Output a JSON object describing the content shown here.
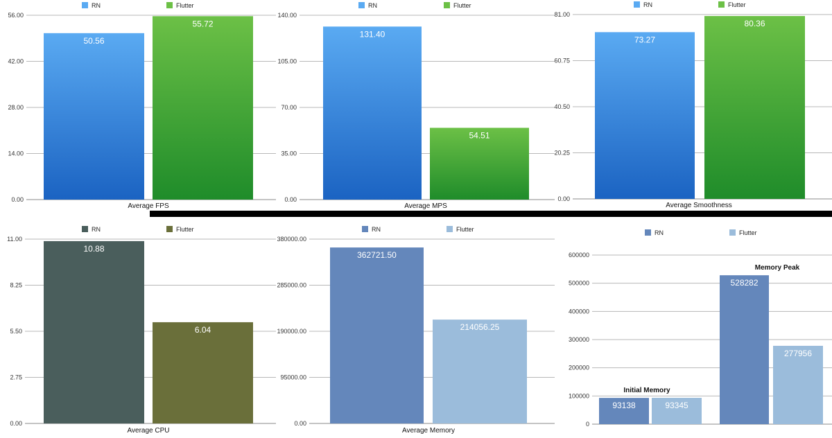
{
  "colors": {
    "rn_blue_top": "#5aaaf2",
    "rn_blue_bottom": "#1b63c2",
    "flutter_green_top": "#6cc046",
    "flutter_green_bottom": "#1f8c2a",
    "rn_slate": "#4a5e5c",
    "flutter_olive": "#6a6f3a",
    "rn_steel": "#6487bb",
    "flutter_light": "#9bbcdb",
    "gridline": "#b7b7b7",
    "label_white": "#ffffff"
  },
  "chart_data": [
    {
      "type": "bar",
      "xlabel": "Average FPS",
      "ylim": [
        0,
        56
      ],
      "yticks": [
        "0.00",
        "14.00",
        "28.00",
        "42.00",
        "56.00"
      ],
      "legend": [
        "RN",
        "Flutter"
      ],
      "series": [
        {
          "name": "RN",
          "values": [
            50.56
          ],
          "labels": [
            "50.56"
          ],
          "style": "blue"
        },
        {
          "name": "Flutter",
          "values": [
            55.72
          ],
          "labels": [
            "55.72"
          ],
          "style": "green"
        }
      ]
    },
    {
      "type": "bar",
      "xlabel": "Average MPS",
      "ylim": [
        0,
        140
      ],
      "yticks": [
        "0.00",
        "35.00",
        "70.00",
        "105.00",
        "140.00"
      ],
      "legend": [
        "RN",
        "Flutter"
      ],
      "series": [
        {
          "name": "RN",
          "values": [
            131.4
          ],
          "labels": [
            "131.40"
          ],
          "style": "blue"
        },
        {
          "name": "Flutter",
          "values": [
            54.51
          ],
          "labels": [
            "54.51"
          ],
          "style": "green"
        }
      ]
    },
    {
      "type": "bar",
      "xlabel": "Average Smoothness",
      "ylim": [
        0,
        81
      ],
      "yticks": [
        "0.00",
        "20.25",
        "40.50",
        "60.75",
        "81.00"
      ],
      "legend": [
        "RN",
        "Flutter"
      ],
      "series": [
        {
          "name": "RN",
          "values": [
            73.27
          ],
          "labels": [
            "73.27"
          ],
          "style": "blue"
        },
        {
          "name": "Flutter",
          "values": [
            80.36
          ],
          "labels": [
            "80.36"
          ],
          "style": "green"
        }
      ]
    },
    {
      "type": "bar",
      "xlabel": "Average CPU",
      "ylim": [
        0,
        11
      ],
      "yticks": [
        "0.00",
        "2.75",
        "5.50",
        "8.25",
        "11.00"
      ],
      "legend": [
        "RN",
        "Flutter"
      ],
      "series": [
        {
          "name": "RN",
          "values": [
            10.88
          ],
          "labels": [
            "10.88"
          ],
          "style": "slate"
        },
        {
          "name": "Flutter",
          "values": [
            6.04
          ],
          "labels": [
            "6.04"
          ],
          "style": "olive"
        }
      ]
    },
    {
      "type": "bar",
      "xlabel": "Average Memory",
      "ylim": [
        0,
        380000
      ],
      "yticks": [
        "0.00",
        "95000.00",
        "190000.00",
        "285000.00",
        "380000.00"
      ],
      "legend": [
        "RN",
        "Flutter"
      ],
      "series": [
        {
          "name": "RN",
          "values": [
            362721.5
          ],
          "labels": [
            "362721.50"
          ],
          "style": "steel"
        },
        {
          "name": "Flutter",
          "values": [
            214056.25
          ],
          "labels": [
            "214056.25"
          ],
          "style": "light"
        }
      ]
    },
    {
      "type": "bar",
      "categories": [
        "Initial Memory",
        "Memory Peak"
      ],
      "ylim": [
        0,
        600000
      ],
      "yticks": [
        "0",
        "100000",
        "200000",
        "300000",
        "400000",
        "500000",
        "600000"
      ],
      "legend": [
        "RN",
        "Flutter"
      ],
      "series": [
        {
          "name": "RN",
          "values": [
            93138,
            528282
          ],
          "labels": [
            "93138",
            "528282"
          ],
          "style": "steel"
        },
        {
          "name": "Flutter",
          "values": [
            93345,
            277956
          ],
          "labels": [
            "93345",
            "277956"
          ],
          "style": "light"
        }
      ]
    }
  ]
}
